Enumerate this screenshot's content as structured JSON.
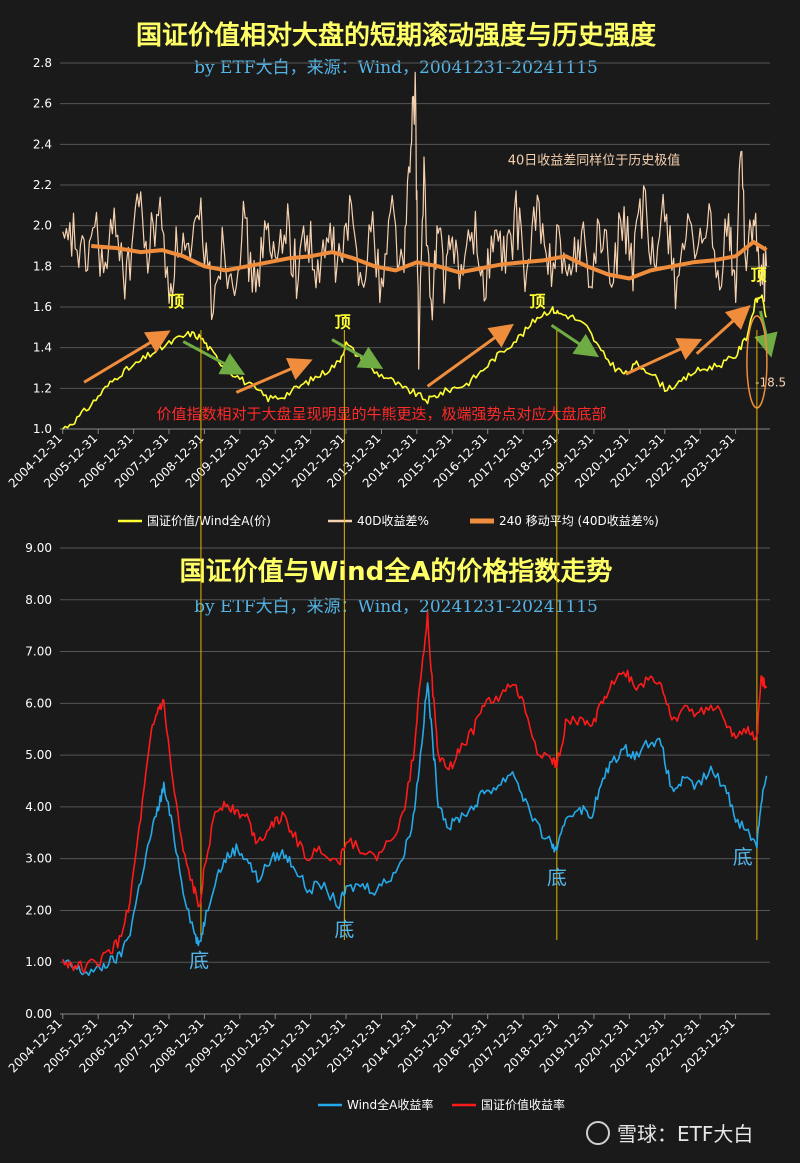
{
  "colors": {
    "background": "#1a1a1a",
    "ratio": "#ffff33",
    "diff40": "#f6d1b0",
    "ma240": "#ef8d3c",
    "wind": "#25a9e9",
    "value": "#ff1a1a",
    "title": "#ffff66",
    "subtitle": "#55b4e6",
    "arrow_up": "#ef8d3c",
    "arrow_down": "#6fad44",
    "guide": "#e6b400",
    "annotation_red": "#ff2a2a",
    "annotation_cream": "#f6d1b0"
  },
  "watermark": "雪球：ETF大白",
  "chart_data": [
    {
      "type": "line",
      "title": "国证价值相对大盘的短期滚动强度与历史强度",
      "subtitle": "by ETF大白，来源：Wind，20041231-20241115",
      "ylim": [
        1.0,
        2.8
      ],
      "yticks": [
        "1.0",
        "1.2",
        "1.4",
        "1.6",
        "1.8",
        "2.0",
        "2.2",
        "2.4",
        "2.6",
        "2.8"
      ],
      "xticks": [
        "2004-12-31",
        "2005-12-31",
        "2006-12-31",
        "2007-12-31",
        "2008-12-31",
        "2009-12-31",
        "2010-12-31",
        "2011-12-31",
        "2012-12-31",
        "2013-12-31",
        "2014-12-31",
        "2015-12-31",
        "2016-12-31",
        "2017-12-31",
        "2018-12-31",
        "2019-12-31",
        "2020-12-31",
        "2021-12-31",
        "2022-12-31",
        "2023-12-31"
      ],
      "series": [
        {
          "name": "国证价值/Wind全A(价)",
          "color_key": "ratio",
          "x": [
            2005.0,
            2005.4,
            2005.8,
            2006.2,
            2006.6,
            2007.0,
            2007.4,
            2007.8,
            2008.2,
            2008.6,
            2008.9,
            2009.2,
            2009.6,
            2010.0,
            2010.4,
            2010.8,
            2011.2,
            2011.6,
            2012.0,
            2012.4,
            2012.8,
            2013.0,
            2013.4,
            2013.8,
            2014.2,
            2014.6,
            2014.9,
            2015.3,
            2015.6,
            2016.0,
            2016.4,
            2016.8,
            2017.2,
            2017.6,
            2018.0,
            2018.4,
            2018.8,
            2019.0,
            2019.4,
            2019.8,
            2020.2,
            2020.6,
            2020.9,
            2021.2,
            2021.6,
            2022.0,
            2022.4,
            2022.8,
            2023.2,
            2023.6,
            2024.0,
            2024.3,
            2024.55,
            2024.72,
            2024.87
          ],
          "y": [
            1.0,
            1.05,
            1.12,
            1.2,
            1.27,
            1.31,
            1.36,
            1.4,
            1.44,
            1.47,
            1.45,
            1.38,
            1.3,
            1.25,
            1.2,
            1.15,
            1.16,
            1.2,
            1.24,
            1.28,
            1.33,
            1.42,
            1.35,
            1.28,
            1.25,
            1.2,
            1.18,
            1.14,
            1.17,
            1.2,
            1.22,
            1.28,
            1.35,
            1.41,
            1.47,
            1.55,
            1.59,
            1.57,
            1.55,
            1.5,
            1.38,
            1.3,
            1.27,
            1.32,
            1.28,
            1.2,
            1.22,
            1.28,
            1.3,
            1.32,
            1.36,
            1.45,
            1.62,
            1.66,
            1.55
          ]
        },
        {
          "name": "40D收益差%",
          "color_key": "diff40",
          "x": [
            2005.0,
            2005.3,
            2005.6,
            2005.9,
            2006.2,
            2006.5,
            2006.8,
            2007.1,
            2007.4,
            2007.7,
            2008.0,
            2008.3,
            2008.6,
            2008.9,
            2009.2,
            2009.5,
            2009.8,
            2010.1,
            2010.4,
            2010.7,
            2011.0,
            2011.3,
            2011.6,
            2011.9,
            2012.2,
            2012.5,
            2012.8,
            2013.1,
            2013.4,
            2013.7,
            2014.0,
            2014.3,
            2014.6,
            2014.8,
            2014.95,
            2015.05,
            2015.2,
            2015.4,
            2015.6,
            2015.8,
            2016.0,
            2016.3,
            2016.6,
            2016.9,
            2017.2,
            2017.5,
            2017.8,
            2018.1,
            2018.4,
            2018.7,
            2019.0,
            2019.3,
            2019.6,
            2019.9,
            2020.2,
            2020.5,
            2020.8,
            2021.1,
            2021.4,
            2021.7,
            2022.0,
            2022.3,
            2022.6,
            2022.9,
            2023.2,
            2023.5,
            2023.8,
            2024.0,
            2024.15,
            2024.3,
            2024.5,
            2024.7,
            2024.87
          ],
          "y": [
            1.85,
            1.95,
            1.8,
            2.0,
            1.75,
            2.05,
            1.7,
            2.15,
            1.85,
            2.1,
            1.7,
            1.95,
            1.8,
            2.05,
            1.65,
            1.9,
            1.75,
            2.0,
            1.7,
            1.95,
            1.8,
            2.05,
            1.75,
            2.0,
            1.7,
            1.95,
            1.8,
            2.05,
            1.75,
            2.0,
            1.7,
            2.1,
            1.75,
            2.3,
            2.7,
            1.4,
            2.2,
            1.6,
            2.0,
            1.7,
            1.95,
            1.75,
            2.0,
            1.7,
            1.95,
            1.8,
            2.05,
            1.75,
            2.1,
            1.75,
            2.0,
            1.7,
            1.95,
            1.75,
            2.0,
            1.7,
            2.05,
            1.8,
            2.1,
            1.75,
            2.15,
            1.7,
            2.0,
            1.75,
            2.05,
            1.7,
            2.0,
            1.65,
            2.45,
            1.8,
            2.05,
            1.7,
            1.8
          ]
        },
        {
          "name": "240 移动平均 (40D收益差%)",
          "color_key": "ma240",
          "x": [
            2005.8,
            2006.5,
            2007.2,
            2007.8,
            2008.4,
            2009.0,
            2009.6,
            2010.2,
            2010.8,
            2011.4,
            2012.0,
            2012.6,
            2013.2,
            2013.8,
            2014.4,
            2015.0,
            2015.6,
            2016.2,
            2016.8,
            2017.4,
            2018.0,
            2018.6,
            2019.2,
            2019.8,
            2020.4,
            2021.0,
            2021.6,
            2022.2,
            2022.8,
            2023.4,
            2024.0,
            2024.5,
            2024.87
          ],
          "y": [
            1.9,
            1.89,
            1.87,
            1.88,
            1.85,
            1.8,
            1.78,
            1.8,
            1.82,
            1.84,
            1.85,
            1.87,
            1.84,
            1.8,
            1.78,
            1.82,
            1.8,
            1.77,
            1.79,
            1.81,
            1.82,
            1.83,
            1.85,
            1.8,
            1.76,
            1.74,
            1.78,
            1.8,
            1.82,
            1.83,
            1.85,
            1.92,
            1.88
          ]
        }
      ],
      "annotations": [
        {
          "text": "顶",
          "x": 2008.2,
          "y": 1.6
        },
        {
          "text": "顶",
          "x": 2012.9,
          "y": 1.5
        },
        {
          "text": "顶",
          "x": 2018.4,
          "y": 1.6
        },
        {
          "text": "顶",
          "x": 2024.65,
          "y": 1.73
        },
        {
          "text": "40日收益差同样位于历史极值",
          "x": 2020.0,
          "y": 2.3
        },
        {
          "text": "价值指数相对于大盘呈现明显的牛熊更迭，极端强势点对应大盘底部",
          "x": 2014.0,
          "y": 1.05
        },
        {
          "text": "-18.5",
          "x": 2024.55,
          "y": 1.21
        }
      ],
      "arrows_up": [
        [
          2005.6,
          1.23,
          2007.9,
          1.47
        ],
        [
          2009.9,
          1.18,
          2011.9,
          1.33
        ],
        [
          2015.3,
          1.21,
          2017.6,
          1.5
        ],
        [
          2020.9,
          1.27,
          2022.9,
          1.43
        ],
        [
          2022.9,
          1.37,
          2024.3,
          1.59
        ]
      ],
      "arrows_down": [
        [
          2008.4,
          1.43,
          2010.0,
          1.28
        ],
        [
          2012.6,
          1.44,
          2013.9,
          1.31
        ],
        [
          2018.8,
          1.51,
          2020.0,
          1.37
        ],
        [
          2024.7,
          1.58,
          2024.97,
          1.38
        ]
      ],
      "ellipse_center": [
        2024.6,
        1.33
      ]
    },
    {
      "type": "line",
      "title": "国证价值与Wind全A的价格指数走势",
      "subtitle": "by ETF大白，来源：Wind，20241231-20241115",
      "ylim": [
        0,
        9
      ],
      "yticks": [
        "0.00",
        "1.00",
        "2.00",
        "3.00",
        "4.00",
        "5.00",
        "6.00",
        "7.00",
        "8.00",
        "9.00"
      ],
      "xticks": [
        "2004-12-31",
        "2005-12-31",
        "2006-12-31",
        "2007-12-31",
        "2008-12-31",
        "2009-12-31",
        "2010-12-31",
        "2011-12-31",
        "2012-12-31",
        "2013-12-31",
        "2014-12-31",
        "2015-12-31",
        "2016-12-31",
        "2017-12-31",
        "2018-12-31",
        "2019-12-31",
        "2020-12-31",
        "2021-12-31",
        "2022-12-31",
        "2023-12-31"
      ],
      "series": [
        {
          "name": "Wind全A收益率",
          "color_key": "wind",
          "x": [
            2005.0,
            2005.3,
            2005.6,
            2006.0,
            2006.3,
            2006.6,
            2006.9,
            2007.2,
            2007.5,
            2007.7,
            2007.85,
            2008.1,
            2008.4,
            2008.7,
            2008.85,
            2009.0,
            2009.3,
            2009.6,
            2009.9,
            2010.2,
            2010.5,
            2010.9,
            2011.2,
            2011.5,
            2011.9,
            2012.3,
            2012.8,
            2013.0,
            2013.4,
            2013.8,
            2014.2,
            2014.6,
            2014.9,
            2015.1,
            2015.3,
            2015.45,
            2015.6,
            2015.9,
            2016.2,
            2016.6,
            2016.9,
            2017.3,
            2017.7,
            2018.0,
            2018.4,
            2018.8,
            2018.95,
            2019.2,
            2019.6,
            2019.9,
            2020.2,
            2020.5,
            2020.9,
            2021.2,
            2021.6,
            2021.9,
            2022.2,
            2022.5,
            2022.9,
            2023.3,
            2023.7,
            2024.0,
            2024.35,
            2024.6,
            2024.72,
            2024.87
          ],
          "y": [
            1.0,
            0.9,
            0.8,
            0.85,
            1.0,
            1.1,
            1.6,
            2.6,
            3.5,
            4.0,
            4.4,
            3.6,
            2.4,
            1.6,
            1.3,
            1.8,
            2.6,
            3.0,
            3.2,
            3.0,
            2.6,
            3.0,
            3.1,
            2.9,
            2.4,
            2.5,
            2.1,
            2.4,
            2.5,
            2.4,
            2.6,
            3.0,
            3.8,
            5.0,
            6.4,
            5.2,
            4.1,
            3.6,
            3.8,
            4.0,
            4.3,
            4.4,
            4.7,
            4.2,
            3.6,
            3.3,
            3.1,
            3.8,
            4.0,
            3.8,
            4.4,
            4.9,
            5.1,
            5.0,
            5.3,
            5.2,
            4.3,
            4.5,
            4.4,
            4.7,
            4.4,
            3.8,
            3.5,
            3.3,
            4.1,
            4.6
          ]
        },
        {
          "name": "国证价值收益率",
          "color_key": "value",
          "x": [
            2005.0,
            2005.3,
            2005.6,
            2006.0,
            2006.3,
            2006.6,
            2006.9,
            2007.2,
            2007.5,
            2007.7,
            2007.85,
            2008.1,
            2008.4,
            2008.7,
            2008.85,
            2009.0,
            2009.3,
            2009.6,
            2009.9,
            2010.2,
            2010.5,
            2010.9,
            2011.2,
            2011.5,
            2011.9,
            2012.3,
            2012.8,
            2013.0,
            2013.4,
            2013.8,
            2014.2,
            2014.6,
            2014.9,
            2015.1,
            2015.3,
            2015.45,
            2015.6,
            2015.9,
            2016.2,
            2016.6,
            2016.9,
            2017.3,
            2017.7,
            2018.0,
            2018.4,
            2018.8,
            2018.95,
            2019.2,
            2019.6,
            2019.9,
            2020.2,
            2020.5,
            2020.9,
            2021.2,
            2021.6,
            2021.9,
            2022.2,
            2022.5,
            2022.9,
            2023.3,
            2023.7,
            2024.0,
            2024.35,
            2024.6,
            2024.72,
            2024.87
          ],
          "y": [
            1.0,
            0.95,
            0.9,
            1.0,
            1.2,
            1.4,
            2.2,
            3.8,
            5.4,
            5.9,
            6.0,
            4.5,
            3.1,
            2.4,
            2.1,
            2.8,
            3.9,
            4.1,
            3.9,
            3.8,
            3.3,
            3.7,
            3.8,
            3.5,
            3.0,
            3.2,
            2.9,
            3.4,
            3.2,
            3.0,
            3.3,
            3.8,
            5.0,
            6.5,
            7.7,
            6.2,
            5.0,
            4.7,
            5.1,
            5.5,
            6.0,
            6.1,
            6.4,
            6.0,
            5.1,
            4.9,
            4.8,
            5.6,
            5.7,
            5.5,
            6.0,
            6.4,
            6.6,
            6.3,
            6.5,
            6.4,
            5.6,
            5.9,
            5.8,
            6.0,
            5.7,
            5.3,
            5.5,
            5.3,
            6.5,
            6.3
          ]
        }
      ],
      "annotations": [
        {
          "text": "底",
          "x": 2008.85,
          "y": 0.9
        },
        {
          "text": "底",
          "x": 2012.95,
          "y": 1.5
        },
        {
          "text": "底",
          "x": 2018.95,
          "y": 2.5
        },
        {
          "text": "底",
          "x": 2024.2,
          "y": 2.9
        }
      ]
    }
  ],
  "guide_lines_x": [
    2008.9,
    2012.95,
    2018.95,
    2024.6
  ]
}
